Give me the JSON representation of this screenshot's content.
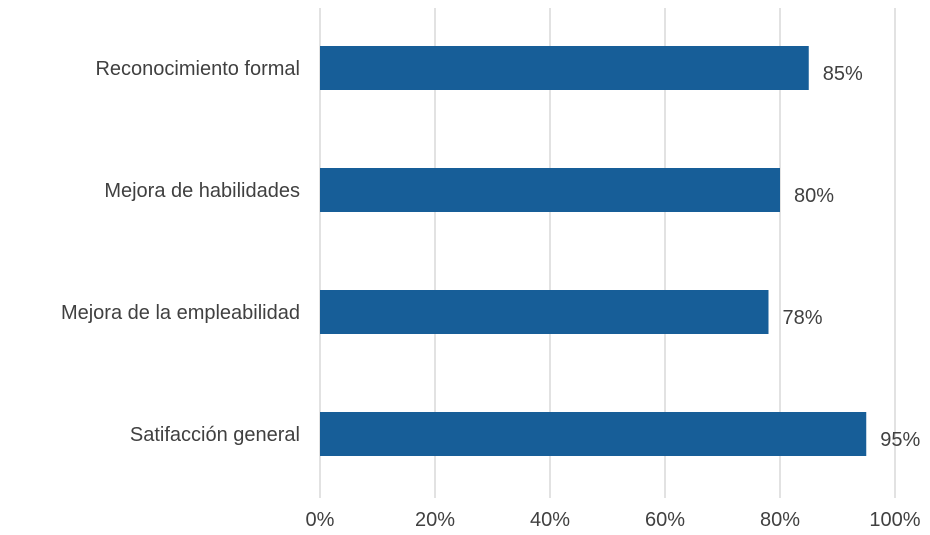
{
  "chart_data": {
    "type": "bar",
    "orientation": "horizontal",
    "categories": [
      "Reconocimiento formal",
      "Mejora de habilidades",
      "Mejora de la empleabilidad",
      "Satifacción general"
    ],
    "values": [
      85,
      80,
      78,
      95
    ],
    "value_labels": [
      "85%",
      "80%",
      "78%",
      "95%"
    ],
    "x_ticks": [
      "0%",
      "20%",
      "40%",
      "60%",
      "80%",
      "100%"
    ],
    "x_tick_values": [
      0,
      20,
      40,
      60,
      80,
      100
    ],
    "xlim": [
      0,
      100
    ],
    "grid": "vertical",
    "legend": "none",
    "title": "",
    "xlabel": "",
    "ylabel": "",
    "colors": {
      "bar": "#175E98",
      "grid": "#D9D9D9",
      "text": "#404040"
    }
  }
}
